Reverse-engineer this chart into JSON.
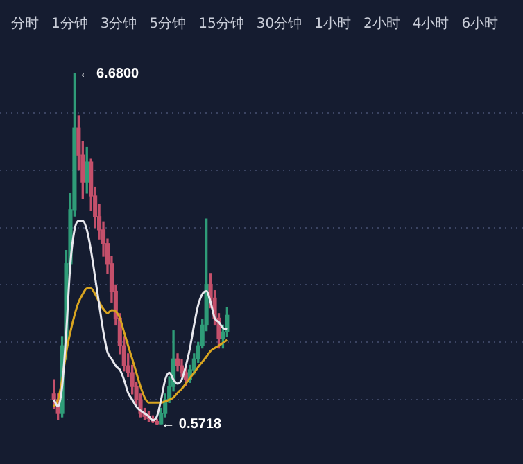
{
  "chart_data": {
    "type": "candlestick",
    "categories": [
      null,
      null,
      null,
      null,
      null,
      null,
      null,
      null,
      null,
      null,
      null,
      null,
      null,
      null,
      null,
      null,
      null,
      null,
      null,
      null,
      null,
      null,
      null,
      null,
      null,
      null,
      null,
      null,
      null,
      null,
      null,
      null,
      null,
      null,
      null,
      null,
      null,
      null,
      null,
      null,
      null,
      null,
      null
    ],
    "ohlc": [
      [
        1.1,
        1.35,
        0.85,
        1.0
      ],
      [
        1.0,
        1.1,
        0.65,
        0.76
      ],
      [
        0.76,
        2.1,
        0.7,
        1.94
      ],
      [
        1.94,
        3.6,
        1.7,
        3.37
      ],
      [
        3.37,
        4.6,
        3.2,
        4.31
      ],
      [
        4.31,
        6.68,
        4.2,
        5.73
      ],
      [
        5.73,
        5.95,
        5.0,
        5.26
      ],
      [
        5.26,
        5.5,
        4.5,
        4.79
      ],
      [
        4.79,
        5.4,
        4.6,
        5.14
      ],
      [
        5.14,
        5.2,
        4.3,
        4.55
      ],
      [
        4.55,
        4.7,
        4.0,
        4.19
      ],
      [
        4.19,
        4.4,
        3.8,
        3.96
      ],
      [
        3.96,
        4.1,
        3.5,
        3.72
      ],
      [
        3.72,
        3.8,
        3.2,
        3.37
      ],
      [
        3.37,
        3.5,
        2.7,
        2.89
      ],
      [
        2.89,
        3.0,
        2.3,
        2.42
      ],
      [
        2.42,
        2.5,
        1.8,
        1.94
      ],
      [
        1.94,
        2.1,
        1.5,
        1.59
      ],
      [
        1.59,
        1.8,
        1.4,
        1.47
      ],
      [
        1.47,
        1.6,
        1.1,
        1.23
      ],
      [
        1.23,
        1.3,
        0.9,
        1.0
      ],
      [
        1.0,
        1.1,
        0.7,
        0.76
      ],
      [
        0.76,
        0.85,
        0.65,
        0.71
      ],
      [
        0.71,
        0.8,
        0.62,
        0.67
      ],
      [
        0.67,
        0.72,
        0.6,
        0.62
      ],
      [
        0.62,
        0.66,
        0.5718,
        0.58
      ],
      [
        0.58,
        0.85,
        0.58,
        0.76
      ],
      [
        0.76,
        1.1,
        0.7,
        1.0
      ],
      [
        1.0,
        1.4,
        0.95,
        1.23
      ],
      [
        1.23,
        2.2,
        1.15,
        1.71
      ],
      [
        1.71,
        1.8,
        1.5,
        1.59
      ],
      [
        1.59,
        1.7,
        1.4,
        1.47
      ],
      [
        1.47,
        1.55,
        1.25,
        1.35
      ],
      [
        1.35,
        1.6,
        1.3,
        1.52
      ],
      [
        1.52,
        1.8,
        1.45,
        1.71
      ],
      [
        1.71,
        2.0,
        1.65,
        1.94
      ],
      [
        1.94,
        2.4,
        1.9,
        2.3
      ],
      [
        2.3,
        4.15,
        2.2,
        3.01
      ],
      [
        3.01,
        3.2,
        2.6,
        2.77
      ],
      [
        2.77,
        2.9,
        2.3,
        2.42
      ],
      [
        2.42,
        2.5,
        1.9,
        2.06
      ],
      [
        2.06,
        2.3,
        1.9,
        2.18
      ],
      [
        2.18,
        2.6,
        2.1,
        2.47
      ]
    ],
    "series": [
      {
        "type": "line",
        "color": "#e8e8ee",
        "values": [
          1.0,
          0.88,
          1.23,
          2.18,
          3.37,
          3.96,
          4.12,
          4.12,
          3.96,
          3.6,
          3.13,
          2.65,
          2.18,
          1.83,
          1.71,
          1.59,
          1.52,
          1.35,
          1.12,
          1.0,
          0.88,
          0.81,
          0.76,
          0.71,
          0.64,
          0.71,
          1.0,
          1.35,
          1.47,
          1.35,
          1.28,
          1.35,
          1.59,
          1.9,
          2.3,
          2.65,
          2.84,
          2.89,
          2.7,
          2.42,
          2.35,
          2.25,
          2.23
        ]
      },
      {
        "type": "line",
        "color": "#d9a520",
        "values": [
          0.88,
          1.0,
          1.35,
          1.83,
          2.18,
          2.47,
          2.7,
          2.84,
          2.94,
          2.94,
          2.84,
          2.7,
          2.58,
          2.51,
          2.56,
          2.54,
          2.42,
          2.18,
          1.94,
          1.71,
          1.47,
          1.23,
          1.04,
          0.95,
          0.95,
          0.95,
          0.95,
          0.97,
          1.0,
          1.04,
          1.12,
          1.19,
          1.28,
          1.38,
          1.47,
          1.57,
          1.66,
          1.75,
          1.85,
          1.9,
          1.94,
          1.99,
          2.04
        ]
      }
    ],
    "yticks": [
      {
        "value": 1,
        "label": null
      },
      {
        "value": 2,
        "label": null
      },
      {
        "value": 3,
        "label": null
      },
      {
        "value": 4,
        "label": null
      },
      {
        "value": 5,
        "label": null
      },
      {
        "value": 6,
        "label": null
      }
    ],
    "grid": "y",
    "tick_labels": false,
    "annotations": [
      "分时",
      "1分钟",
      "3分钟",
      "5分钟",
      "15分钟",
      "30分钟",
      "1小时",
      "2小时",
      "4小时",
      "6小时",
      "← 6.6800",
      "← 0.5718"
    ]
  }
}
